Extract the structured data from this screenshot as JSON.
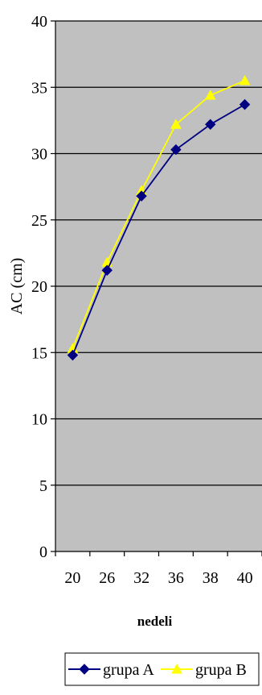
{
  "chart_data": {
    "type": "line",
    "title": "",
    "xlabel": "nedeli",
    "ylabel": "AC (cm)",
    "categories": [
      "20",
      "26",
      "32",
      "36",
      "38",
      "40"
    ],
    "ylim": [
      0,
      40
    ],
    "yticks": [
      0,
      5,
      10,
      15,
      20,
      25,
      30,
      35,
      40
    ],
    "grid": true,
    "legend_position": "bottom",
    "plot_background": "#c0c0c0",
    "series": [
      {
        "name": "grupa A",
        "values": [
          14.8,
          21.2,
          26.8,
          30.3,
          32.2,
          33.7
        ],
        "color": "#000080",
        "marker": "diamond"
      },
      {
        "name": "grupa B",
        "values": [
          15.3,
          21.8,
          27.2,
          32.2,
          34.4,
          35.5
        ],
        "color": "#ffff00",
        "marker": "triangle"
      }
    ]
  }
}
